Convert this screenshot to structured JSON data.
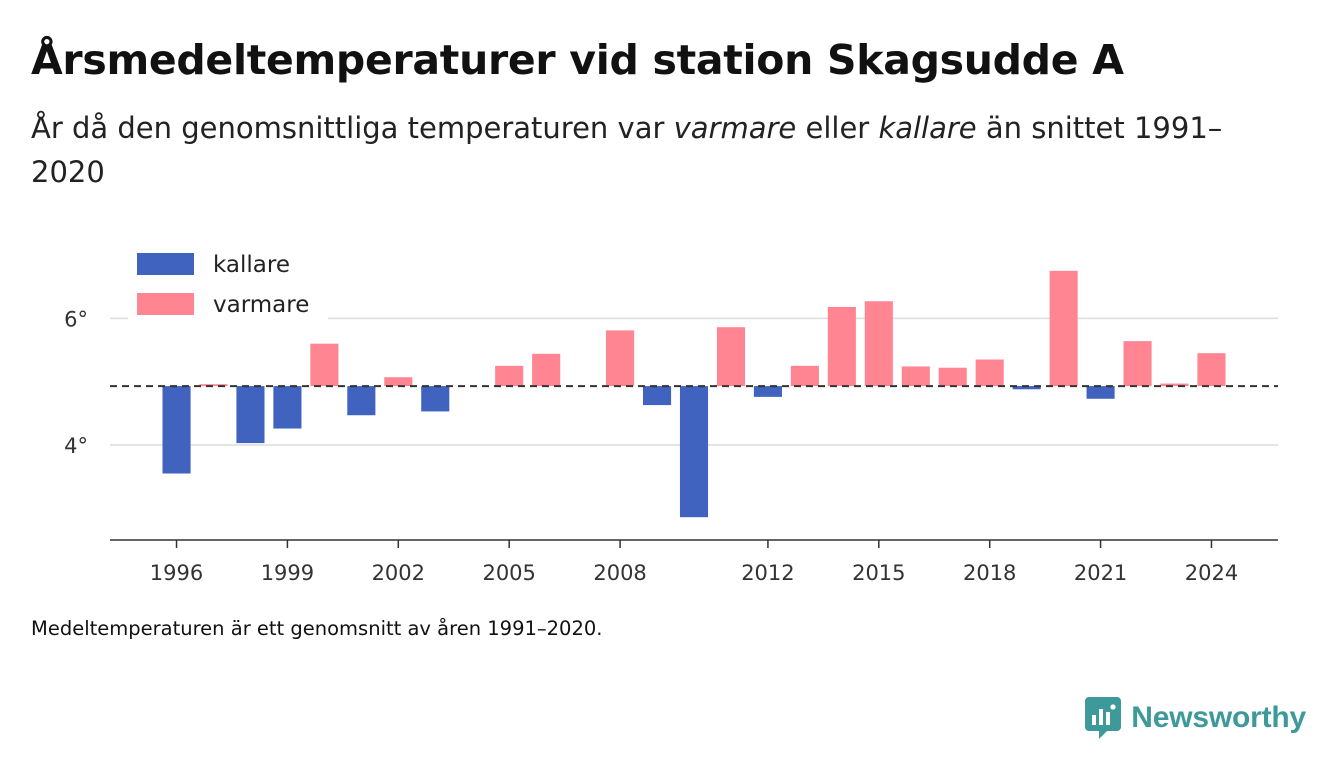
{
  "header": {
    "title": "Årsmedeltemperaturer vid station Skagsudde A",
    "subtitle_parts": [
      "År då den genomsnittliga temperaturen var ",
      "varmare",
      " eller ",
      "kallare",
      " än snittet 1991–2020"
    ]
  },
  "footnote": "Medeltemperaturen är ett genomsnitt av åren 1991–2020.",
  "brand": {
    "name": "Newsworthy",
    "icon": "newsworthy-logo-icon",
    "color": "#3e9a9a"
  },
  "colors": {
    "kallare": "#4063c0",
    "varmare": "#ff8592",
    "baseline": "#333333",
    "grid": "#dcdcdc",
    "axis": "#333333"
  },
  "chart_data": {
    "type": "bar",
    "baseline": 4.93,
    "ylim": [
      2.5,
      7.0
    ],
    "yticks": [
      4,
      6
    ],
    "ytick_labels": [
      "4°",
      "6°"
    ],
    "xlim": [
      1994.2,
      2025.8
    ],
    "xticks": [
      1996,
      1999,
      2002,
      2005,
      2008,
      2012,
      2015,
      2018,
      2021,
      2024
    ],
    "xtick_labels": [
      "1996",
      "1999",
      "2002",
      "2005",
      "2008",
      "2012",
      "2015",
      "2018",
      "2021",
      "2024"
    ],
    "legend": {
      "placement": "top-left",
      "entries": [
        {
          "key": "kallare",
          "label": "kallare"
        },
        {
          "key": "varmare",
          "label": "varmare"
        }
      ]
    },
    "series": [
      {
        "year": 1996,
        "value": 3.55
      },
      {
        "year": 1997,
        "value": 4.96
      },
      {
        "year": 1998,
        "value": 4.03
      },
      {
        "year": 1999,
        "value": 4.26
      },
      {
        "year": 2000,
        "value": 5.6
      },
      {
        "year": 2001,
        "value": 4.47
      },
      {
        "year": 2002,
        "value": 5.07
      },
      {
        "year": 2003,
        "value": 4.53
      },
      {
        "year": 2005,
        "value": 5.25
      },
      {
        "year": 2006,
        "value": 5.44
      },
      {
        "year": 2008,
        "value": 5.81
      },
      {
        "year": 2009,
        "value": 4.63
      },
      {
        "year": 2010,
        "value": 2.86
      },
      {
        "year": 2011,
        "value": 5.86
      },
      {
        "year": 2012,
        "value": 4.76
      },
      {
        "year": 2013,
        "value": 5.25
      },
      {
        "year": 2014,
        "value": 6.18
      },
      {
        "year": 2015,
        "value": 6.27
      },
      {
        "year": 2016,
        "value": 5.24
      },
      {
        "year": 2017,
        "value": 5.22
      },
      {
        "year": 2018,
        "value": 5.35
      },
      {
        "year": 2019,
        "value": 4.88
      },
      {
        "year": 2020,
        "value": 6.75
      },
      {
        "year": 2021,
        "value": 4.73
      },
      {
        "year": 2022,
        "value": 5.64
      },
      {
        "year": 2023,
        "value": 4.97
      },
      {
        "year": 2024,
        "value": 5.45
      }
    ]
  }
}
